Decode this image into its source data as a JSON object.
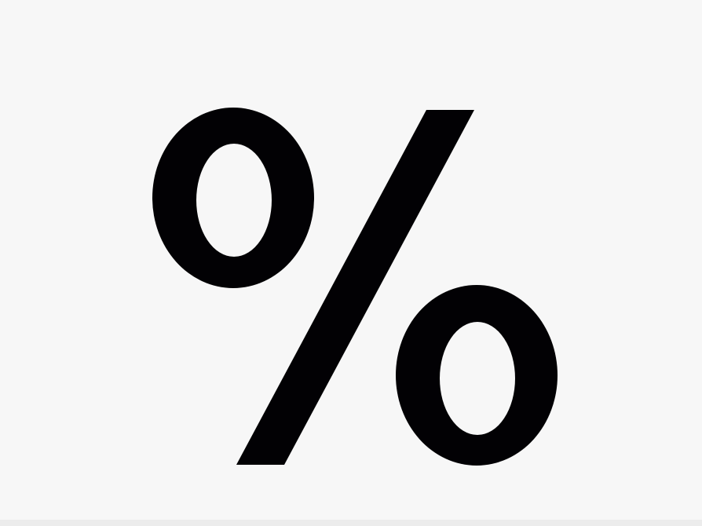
{
  "symbol": {
    "text": "%",
    "icon_name": "percent-icon",
    "color": "#020104"
  },
  "colors": {
    "background": "#f7f7f7",
    "bottom_strip": "#ececec"
  }
}
